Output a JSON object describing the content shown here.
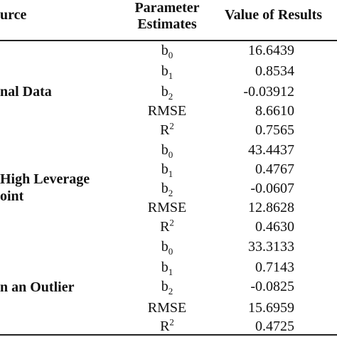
{
  "table": {
    "headers": {
      "source": "urce",
      "parameter_line1": "Parameter",
      "parameter_line2": "Estimates",
      "value": "Value of Results"
    },
    "groups": [
      {
        "lines": [
          "nal Data"
        ]
      },
      {
        "lines": [
          "High Leverage",
          "oint"
        ]
      },
      {
        "lines": [
          "n an Outlier"
        ]
      }
    ],
    "rows": [
      {
        "base": "b",
        "sub": "0",
        "sup": "",
        "value": "16.6439"
      },
      {
        "base": "b",
        "sub": "1",
        "sup": "",
        "value": "0.8534"
      },
      {
        "base": "b",
        "sub": "2",
        "sup": "",
        "value": "-0.03912"
      },
      {
        "base": "RMSE",
        "sub": "",
        "sup": "",
        "value": "8.6610"
      },
      {
        "base": "R",
        "sub": "",
        "sup": "2",
        "value": "0.7565"
      },
      {
        "base": "b",
        "sub": "0",
        "sup": "",
        "value": "43.4437"
      },
      {
        "base": "b",
        "sub": "1",
        "sup": "",
        "value": "0.4767"
      },
      {
        "base": "b",
        "sub": "2",
        "sup": "",
        "value": "-0.0607"
      },
      {
        "base": "RMSE",
        "sub": "",
        "sup": "",
        "value": "12.8628"
      },
      {
        "base": "R",
        "sub": "",
        "sup": "2",
        "value": "0.4630"
      },
      {
        "base": "b",
        "sub": "0",
        "sup": "",
        "value": "33.3133"
      },
      {
        "base": "b",
        "sub": "1",
        "sup": "",
        "value": "0.7143"
      },
      {
        "base": "b",
        "sub": "2",
        "sup": "",
        "value": "-0.0825"
      },
      {
        "base": "RMSE",
        "sub": "",
        "sup": "",
        "value": "15.6959"
      },
      {
        "base": "R",
        "sub": "",
        "sup": "2",
        "value": "0.4725"
      }
    ]
  }
}
